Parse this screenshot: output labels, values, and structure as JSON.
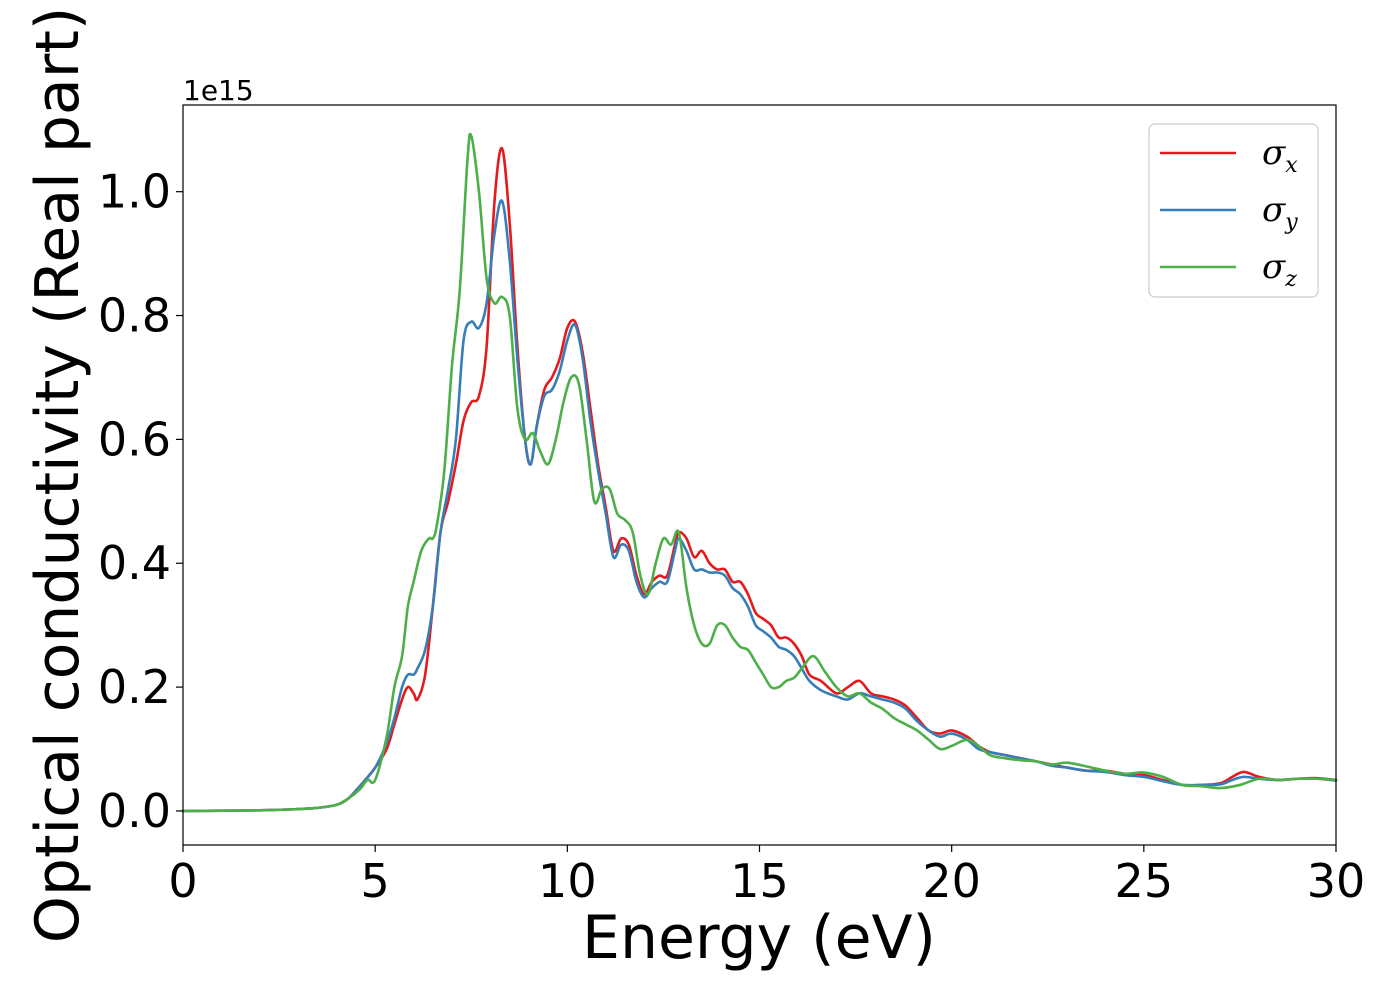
{
  "chart_data": {
    "type": "line",
    "title": "",
    "xlabel": "Energy (eV)",
    "ylabel": "Optical conductivity (Real part)",
    "y_offset_label": "1e15",
    "xlim": [
      0,
      30
    ],
    "ylim": [
      -0.055,
      1.14
    ],
    "xticks": [
      0,
      5,
      10,
      15,
      20,
      25,
      30
    ],
    "xtick_labels": [
      "0",
      "5",
      "10",
      "15",
      "20",
      "25",
      "30"
    ],
    "yticks": [
      0.0,
      0.2,
      0.4,
      0.6,
      0.8,
      1.0
    ],
    "ytick_labels": [
      "0.0",
      "0.2",
      "0.4",
      "0.6",
      "0.8",
      "1.0"
    ],
    "grid": false,
    "legend_position": "top-right",
    "series": [
      {
        "name": "σx",
        "legend_base": "σ",
        "legend_sub": "x",
        "color": "#e41a1c",
        "x": [
          0,
          2,
          3,
          3.5,
          4,
          4.3,
          4.6,
          5,
          5.3,
          5.5,
          5.7,
          5.85,
          6.0,
          6.1,
          6.3,
          6.5,
          6.7,
          6.9,
          7.1,
          7.3,
          7.5,
          7.7,
          7.9,
          8.1,
          8.3,
          8.5,
          8.7,
          8.9,
          9.05,
          9.2,
          9.4,
          9.6,
          9.8,
          10.0,
          10.2,
          10.4,
          10.6,
          10.8,
          11.0,
          11.2,
          11.4,
          11.6,
          11.8,
          12.0,
          12.2,
          12.4,
          12.6,
          12.8,
          12.9,
          13.1,
          13.3,
          13.5,
          13.7,
          13.9,
          14.1,
          14.3,
          14.5,
          14.7,
          14.9,
          15.1,
          15.3,
          15.5,
          15.7,
          15.9,
          16.1,
          16.3,
          16.6,
          17.0,
          17.3,
          17.6,
          17.9,
          18.2,
          18.5,
          18.8,
          19.1,
          19.4,
          19.7,
          20.0,
          20.4,
          20.7,
          21.0,
          21.4,
          21.8,
          22.2,
          22.6,
          23.0,
          23.5,
          24.0,
          24.5,
          25.0,
          25.5,
          26.0,
          26.5,
          27.0,
          27.3,
          27.6,
          28.0,
          28.5,
          29.0,
          29.5,
          30.0
        ],
        "y": [
          0.0,
          0.001,
          0.003,
          0.005,
          0.01,
          0.02,
          0.04,
          0.07,
          0.1,
          0.14,
          0.18,
          0.2,
          0.19,
          0.18,
          0.22,
          0.33,
          0.45,
          0.5,
          0.56,
          0.63,
          0.66,
          0.67,
          0.75,
          0.98,
          1.07,
          0.95,
          0.75,
          0.6,
          0.56,
          0.62,
          0.68,
          0.7,
          0.73,
          0.78,
          0.79,
          0.74,
          0.65,
          0.56,
          0.49,
          0.42,
          0.44,
          0.43,
          0.38,
          0.35,
          0.37,
          0.38,
          0.38,
          0.43,
          0.45,
          0.44,
          0.41,
          0.42,
          0.4,
          0.39,
          0.39,
          0.37,
          0.37,
          0.35,
          0.32,
          0.31,
          0.3,
          0.28,
          0.28,
          0.27,
          0.25,
          0.22,
          0.21,
          0.19,
          0.2,
          0.21,
          0.19,
          0.185,
          0.18,
          0.17,
          0.15,
          0.13,
          0.125,
          0.13,
          0.12,
          0.105,
          0.095,
          0.09,
          0.085,
          0.08,
          0.075,
          0.07,
          0.065,
          0.065,
          0.06,
          0.058,
          0.05,
          0.042,
          0.042,
          0.045,
          0.055,
          0.063,
          0.055,
          0.05,
          0.052,
          0.053,
          0.05
        ]
      },
      {
        "name": "σy",
        "legend_base": "σ",
        "legend_sub": "y",
        "color": "#377eb8",
        "x": [
          0,
          2,
          3,
          3.5,
          4,
          4.3,
          4.6,
          5,
          5.3,
          5.5,
          5.7,
          5.85,
          6.0,
          6.1,
          6.3,
          6.5,
          6.7,
          6.9,
          7.1,
          7.3,
          7.5,
          7.7,
          7.9,
          8.1,
          8.3,
          8.5,
          8.7,
          8.9,
          9.05,
          9.2,
          9.4,
          9.6,
          9.8,
          10.0,
          10.2,
          10.4,
          10.6,
          10.8,
          11.0,
          11.2,
          11.4,
          11.6,
          11.8,
          12.0,
          12.2,
          12.4,
          12.6,
          12.8,
          12.9,
          13.1,
          13.3,
          13.5,
          13.7,
          13.9,
          14.1,
          14.3,
          14.5,
          14.7,
          14.9,
          15.1,
          15.3,
          15.5,
          15.7,
          15.9,
          16.1,
          16.3,
          16.6,
          17.0,
          17.3,
          17.6,
          17.9,
          18.2,
          18.5,
          18.8,
          19.1,
          19.4,
          19.7,
          20.0,
          20.4,
          20.7,
          21.0,
          21.4,
          21.8,
          22.2,
          22.6,
          23.0,
          23.5,
          24.0,
          24.5,
          25.0,
          25.5,
          26.0,
          26.5,
          27.0,
          27.3,
          27.6,
          28.0,
          28.5,
          29.0,
          29.5,
          30.0
        ],
        "y": [
          0.0,
          0.001,
          0.003,
          0.005,
          0.01,
          0.02,
          0.04,
          0.07,
          0.11,
          0.15,
          0.2,
          0.22,
          0.22,
          0.23,
          0.26,
          0.33,
          0.45,
          0.52,
          0.6,
          0.76,
          0.79,
          0.78,
          0.82,
          0.93,
          0.985,
          0.89,
          0.73,
          0.6,
          0.56,
          0.62,
          0.67,
          0.68,
          0.71,
          0.76,
          0.785,
          0.73,
          0.63,
          0.55,
          0.48,
          0.41,
          0.43,
          0.42,
          0.37,
          0.345,
          0.36,
          0.37,
          0.37,
          0.42,
          0.44,
          0.42,
          0.39,
          0.39,
          0.385,
          0.385,
          0.38,
          0.36,
          0.35,
          0.33,
          0.3,
          0.29,
          0.28,
          0.265,
          0.26,
          0.25,
          0.23,
          0.21,
          0.195,
          0.185,
          0.18,
          0.19,
          0.185,
          0.18,
          0.175,
          0.165,
          0.145,
          0.13,
          0.12,
          0.125,
          0.115,
          0.1,
          0.095,
          0.09,
          0.085,
          0.08,
          0.073,
          0.07,
          0.065,
          0.063,
          0.058,
          0.055,
          0.048,
          0.042,
          0.042,
          0.043,
          0.05,
          0.055,
          0.052,
          0.05,
          0.052,
          0.052,
          0.049
        ]
      },
      {
        "name": "σz",
        "legend_base": "σ",
        "legend_sub": "z",
        "color": "#4daf4a",
        "x": [
          0,
          2,
          3,
          3.5,
          4,
          4.3,
          4.6,
          4.8,
          5.0,
          5.3,
          5.5,
          5.7,
          5.85,
          6.0,
          6.2,
          6.4,
          6.5,
          6.6,
          6.8,
          7.0,
          7.2,
          7.4,
          7.5,
          7.7,
          7.9,
          8.1,
          8.3,
          8.5,
          8.7,
          8.9,
          9.1,
          9.3,
          9.5,
          9.7,
          9.9,
          10.1,
          10.3,
          10.5,
          10.7,
          10.9,
          11.1,
          11.3,
          11.5,
          11.7,
          11.9,
          12.1,
          12.3,
          12.5,
          12.7,
          12.9,
          13.1,
          13.3,
          13.5,
          13.7,
          13.9,
          14.1,
          14.3,
          14.5,
          14.7,
          14.9,
          15.1,
          15.3,
          15.5,
          15.7,
          15.9,
          16.1,
          16.4,
          16.7,
          17.0,
          17.3,
          17.6,
          17.9,
          18.2,
          18.5,
          18.8,
          19.1,
          19.4,
          19.7,
          20.0,
          20.4,
          20.7,
          21.0,
          21.4,
          21.8,
          22.2,
          22.6,
          23.0,
          23.5,
          24.0,
          24.5,
          25.0,
          25.5,
          26.0,
          26.5,
          27.0,
          27.5,
          28.0,
          28.5,
          29.0,
          29.5,
          30.0
        ],
        "y": [
          0.0,
          0.001,
          0.003,
          0.005,
          0.01,
          0.02,
          0.035,
          0.05,
          0.05,
          0.12,
          0.2,
          0.25,
          0.33,
          0.37,
          0.42,
          0.44,
          0.44,
          0.46,
          0.55,
          0.72,
          0.84,
          1.05,
          1.09,
          1.0,
          0.86,
          0.82,
          0.83,
          0.8,
          0.65,
          0.6,
          0.61,
          0.58,
          0.56,
          0.6,
          0.66,
          0.7,
          0.69,
          0.6,
          0.5,
          0.52,
          0.52,
          0.48,
          0.47,
          0.45,
          0.38,
          0.35,
          0.4,
          0.44,
          0.43,
          0.45,
          0.36,
          0.3,
          0.27,
          0.27,
          0.3,
          0.3,
          0.28,
          0.265,
          0.26,
          0.24,
          0.22,
          0.2,
          0.2,
          0.21,
          0.215,
          0.23,
          0.25,
          0.225,
          0.2,
          0.185,
          0.19,
          0.175,
          0.165,
          0.15,
          0.14,
          0.13,
          0.115,
          0.1,
          0.105,
          0.115,
          0.105,
          0.09,
          0.085,
          0.082,
          0.08,
          0.075,
          0.078,
          0.072,
          0.065,
          0.06,
          0.062,
          0.055,
          0.042,
          0.04,
          0.037,
          0.042,
          0.052,
          0.05,
          0.052,
          0.052,
          0.05
        ]
      }
    ]
  }
}
